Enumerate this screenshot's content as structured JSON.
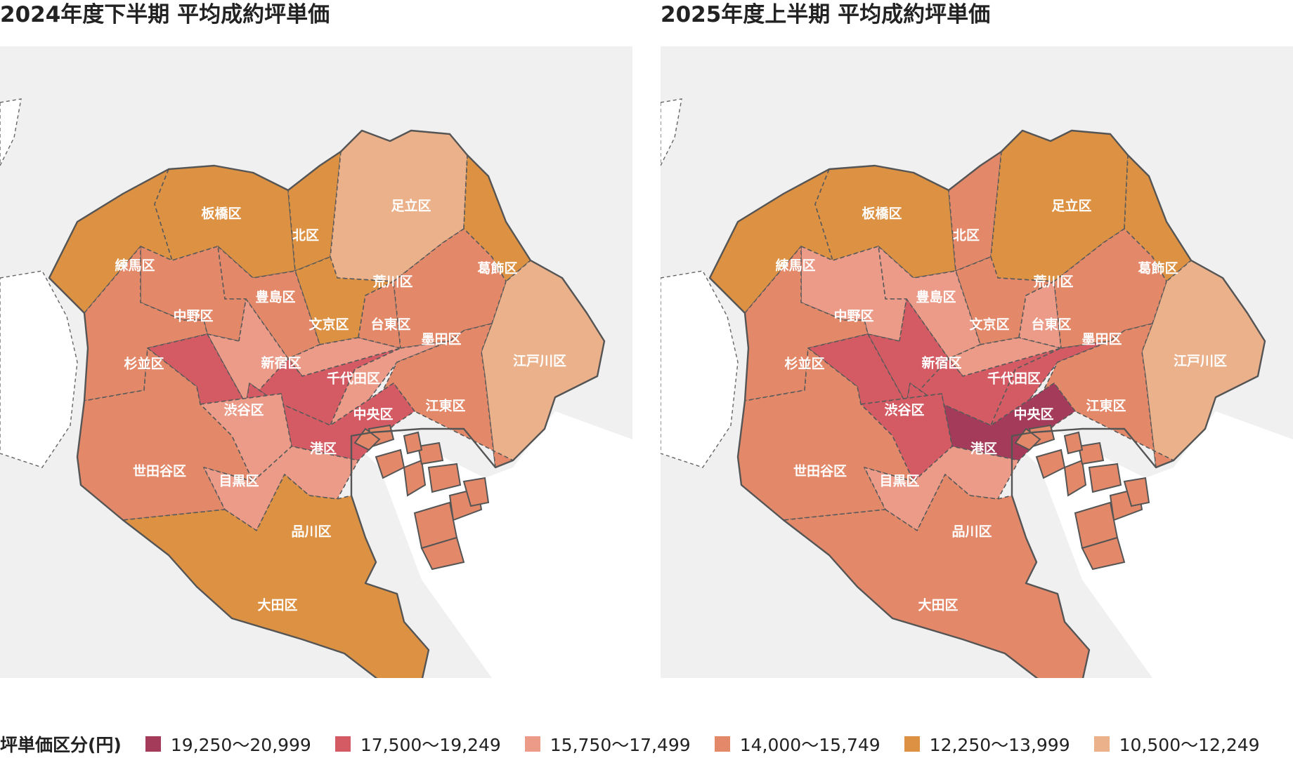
{
  "maps": [
    {
      "title": "2024年度下半期 平均成約坪単価",
      "fills": {
        "minato": 1,
        "chiyoda": 1,
        "shibuya": 1,
        "chuo": 2,
        "shinjuku": 2,
        "meguro": 2,
        "shinagawa": 2,
        "bunkyo": 2,
        "toshima": 3,
        "taito": 3,
        "sumida": 3,
        "koto": 3,
        "nakano": 3,
        "suginami": 3,
        "setagaya": 3,
        "nerima": 4,
        "itabashi": 4,
        "kita": 4,
        "arakawa": 4,
        "katsushika": 4,
        "ota": 4,
        "adachi": 5,
        "edogawa": 5,
        "islands": 3
      },
      "labels": {
        "adachi": "足立区",
        "itabashi": "板橋区",
        "kita": "北区",
        "nerima": "練馬区",
        "katsushika": "葛飾区",
        "arakawa": "荒川区",
        "toshima": "豊島区",
        "nakano": "中野区",
        "bunkyo": "文京区",
        "taito": "台東区",
        "sumida": "墨田区",
        "suginami": "杉並区",
        "shinjuku": "新宿区",
        "chiyoda": "千代田区",
        "edogawa": "江戸川区",
        "shibuya": "渋谷区",
        "chuo": "中央区",
        "koto": "江東区",
        "minato": "港区",
        "setagaya": "世田谷区",
        "meguro": "目黒区",
        "shinagawa": "品川区",
        "ota": "大田区"
      }
    },
    {
      "title": "2025年度上半期 平均成約坪単価",
      "fills": {
        "minato": 0,
        "chiyoda": 1,
        "shibuya": 1,
        "chuo": 1,
        "shinjuku": 1,
        "meguro": 1,
        "shinagawa": 2,
        "bunkyo": 2,
        "toshima": 2,
        "taito": 2,
        "nakano": 2,
        "sumida": 3,
        "koto": 3,
        "suginami": 3,
        "setagaya": 3,
        "ota": 3,
        "kita": 3,
        "arakawa": 3,
        "nerima": 4,
        "itabashi": 4,
        "katsushika": 4,
        "adachi": 4,
        "edogawa": 5,
        "islands": 3
      },
      "labels": {
        "adachi": "足立区",
        "itabashi": "板橋区",
        "kita": "北区",
        "nerima": "練馬区",
        "katsushika": "葛飾区",
        "arakawa": "荒川区",
        "toshima": "豊島区",
        "nakano": "中野区",
        "bunkyo": "文京区",
        "taito": "台東区",
        "sumida": "墨田区",
        "suginami": "杉並区",
        "shinjuku": "新宿区",
        "chiyoda": "千代田区",
        "edogawa": "江戸川区",
        "shibuya": "渋谷区",
        "chuo": "中央区",
        "koto": "江東区",
        "minato": "港区",
        "setagaya": "世田谷区",
        "meguro": "目黒区",
        "shinagawa": "品川区",
        "ota": "大田区"
      }
    }
  ],
  "legend": {
    "title": "坪単価区分(円)",
    "items": [
      {
        "label": "19,250〜20,999",
        "color": "#a53b5a"
      },
      {
        "label": "17,500〜19,249",
        "color": "#d45b63"
      },
      {
        "label": "15,750〜17,499",
        "color": "#eb9b88"
      },
      {
        "label": "14,000〜15,749",
        "color": "#e3896a"
      },
      {
        "label": "12,250〜13,999",
        "color": "#dd9142"
      },
      {
        "label": "10,500〜12,249",
        "color": "#ebb18a"
      }
    ]
  }
}
